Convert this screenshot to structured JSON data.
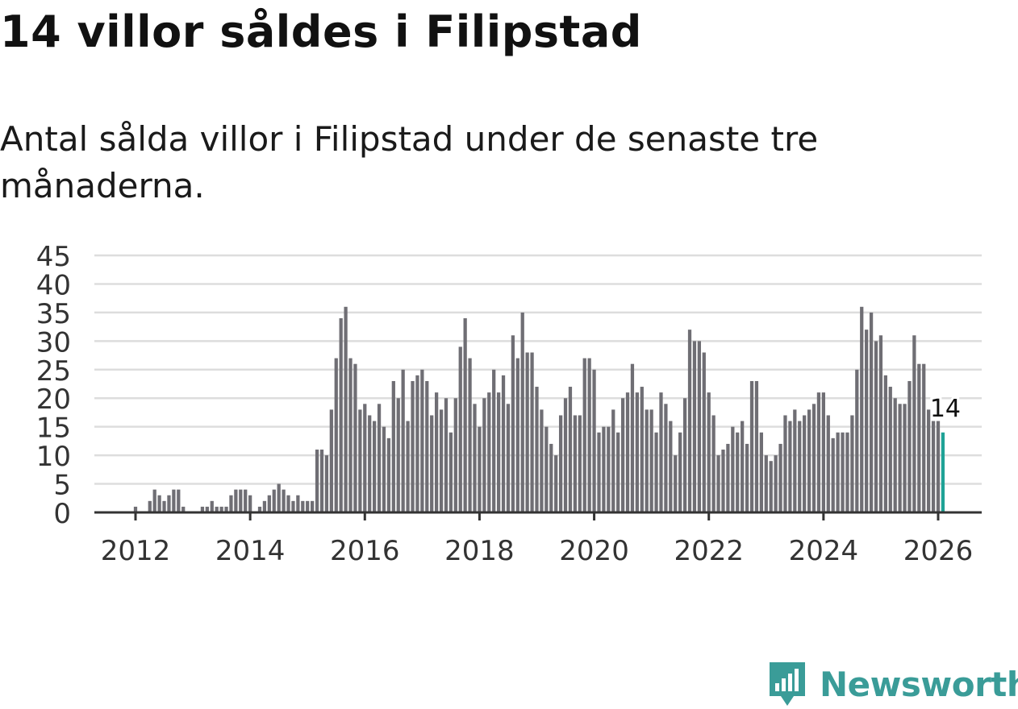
{
  "header": {
    "title": "14 villor såldes i Filipstad",
    "subtitle": "Antal sålda villor i Filipstad under de senaste tre månaderna."
  },
  "brand": {
    "name": "Newsworthy"
  },
  "colors": {
    "bar": "#6f6e74",
    "highlight": "#1fa296",
    "grid": "#dddddd",
    "axis": "#333333",
    "text": "#333333",
    "brand": "#3a9c98"
  },
  "chart_data": {
    "type": "bar",
    "title": "",
    "xlabel": "",
    "ylabel": "",
    "ylim": [
      0,
      45
    ],
    "yticks": [
      0,
      5,
      10,
      15,
      20,
      25,
      30,
      35,
      40,
      45
    ],
    "xticks": [
      "2012",
      "2014",
      "2016",
      "2018",
      "2020",
      "2022",
      "2024",
      "2026"
    ],
    "start": "2011-06",
    "end": "2026-01",
    "values": [
      0,
      0,
      0,
      0,
      0,
      0,
      0,
      1,
      0,
      0,
      2,
      4,
      3,
      2,
      3,
      4,
      4,
      1,
      0,
      0,
      0,
      1,
      1,
      2,
      1,
      1,
      1,
      3,
      4,
      4,
      4,
      3,
      0,
      1,
      2,
      3,
      4,
      5,
      4,
      3,
      2,
      3,
      2,
      2,
      2,
      11,
      11,
      10,
      18,
      27,
      34,
      36,
      27,
      26,
      18,
      19,
      17,
      16,
      19,
      15,
      13,
      23,
      20,
      25,
      16,
      23,
      24,
      25,
      23,
      17,
      21,
      18,
      20,
      14,
      20,
      29,
      34,
      27,
      19,
      15,
      20,
      21,
      25,
      21,
      24,
      19,
      31,
      27,
      35,
      28,
      28,
      22,
      18,
      15,
      12,
      10,
      17,
      20,
      22,
      17,
      17,
      27,
      27,
      25,
      14,
      15,
      15,
      18,
      14,
      20,
      21,
      26,
      21,
      22,
      18,
      18,
      14,
      21,
      19,
      16,
      10,
      14,
      20,
      32,
      30,
      30,
      28,
      21,
      17,
      10,
      11,
      12,
      15,
      14,
      16,
      12,
      23,
      23,
      14,
      10,
      9,
      10,
      12,
      17,
      16,
      18,
      16,
      17,
      18,
      19,
      21,
      21,
      17,
      13,
      14,
      14,
      14,
      17,
      25,
      36,
      32,
      35,
      30,
      31,
      24,
      22,
      20,
      19,
      19,
      23,
      31,
      26,
      26,
      18,
      16,
      16,
      14
    ],
    "highlight_last": true,
    "annotation": {
      "label": "14",
      "value": 14,
      "target": "last"
    }
  }
}
